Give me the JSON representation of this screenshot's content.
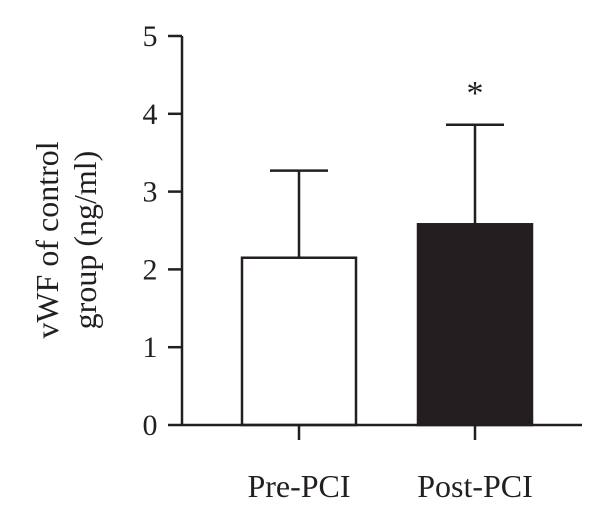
{
  "chart_data": {
    "type": "bar",
    "categories": [
      "Pre-PCI",
      "Post-PCI"
    ],
    "values": [
      2.15,
      2.58
    ],
    "error_upper": [
      3.27,
      3.86
    ],
    "bar_fill": [
      "#ffffff",
      "#231f20"
    ],
    "bar_stroke": "#231f20",
    "annotations": [
      {
        "category": "Post-PCI",
        "text": "*"
      }
    ],
    "ylabel_lines": [
      "vWF of control",
      "group (ng/ml)"
    ],
    "xlabel": "",
    "ylim": [
      0,
      5
    ],
    "yticks": [
      0,
      1,
      2,
      3,
      4,
      5
    ],
    "grid": false
  }
}
